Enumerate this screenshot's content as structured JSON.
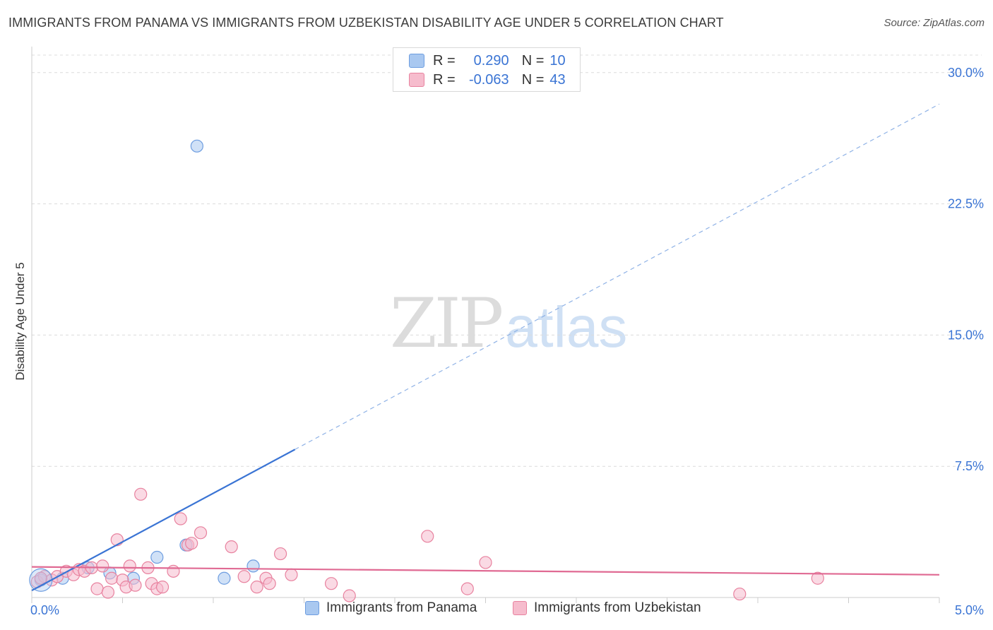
{
  "header": {
    "title": "IMMIGRANTS FROM PANAMA VS IMMIGRANTS FROM UZBEKISTAN DISABILITY AGE UNDER 5 CORRELATION CHART",
    "source": "Source: ZipAtlas.com"
  },
  "watermark": {
    "zip": "ZIP",
    "atlas": "atlas"
  },
  "stats": {
    "r_label": "R =",
    "n_label": "N =",
    "rows": [
      {
        "series": "Immigrants from Panama",
        "r": "0.290",
        "n": "10",
        "color": "#a9c8f0",
        "border": "#6d9de0"
      },
      {
        "series": "Immigrants from Uzbekistan",
        "r": "-0.063",
        "n": "43",
        "color": "#f6bccd",
        "border": "#e8829f"
      }
    ]
  },
  "chart_data": {
    "type": "scatter",
    "title": "IMMIGRANTS FROM PANAMA VS IMMIGRANTS FROM UZBEKISTAN DISABILITY AGE UNDER 5 CORRELATION CHART",
    "xlabel": "",
    "ylabel": "Disability Age Under 5",
    "xlim": [
      0,
      5
    ],
    "ylim": [
      0,
      31
    ],
    "x_unit": "%",
    "y_unit": "%",
    "x_tick_labels": [
      "0.0%",
      "5.0%"
    ],
    "y_ticks": [
      7.5,
      15.0,
      22.5,
      30.0
    ],
    "y_tick_labels": [
      "7.5%",
      "15.0%",
      "22.5%",
      "30.0%"
    ],
    "grid": true,
    "legend_position": "bottom",
    "series": [
      {
        "name": "Immigrants from Panama",
        "color": "#a9c8f0",
        "stroke": "#6d9de0",
        "trend_color": "#3a74d4",
        "trend": {
          "x0": 0,
          "y0": 0.4,
          "x1": 5,
          "y1": 28.2,
          "solid_until_x": 1.45
        },
        "points": [
          {
            "x": 0.05,
            "y": 1.0
          },
          {
            "x": 0.17,
            "y": 1.1
          },
          {
            "x": 0.31,
            "y": 1.7
          },
          {
            "x": 0.43,
            "y": 1.4
          },
          {
            "x": 0.56,
            "y": 1.1
          },
          {
            "x": 0.69,
            "y": 2.3
          },
          {
            "x": 0.85,
            "y": 3.0
          },
          {
            "x": 0.91,
            "y": 25.8
          },
          {
            "x": 1.06,
            "y": 1.1
          },
          {
            "x": 1.22,
            "y": 1.8
          }
        ]
      },
      {
        "name": "Immigrants from Uzbekistan",
        "color": "#f6bccd",
        "stroke": "#e8829f",
        "trend_color": "#e06a93",
        "trend": {
          "x0": 0,
          "y0": 1.75,
          "x1": 5,
          "y1": 1.3
        },
        "points": [
          {
            "x": 0.03,
            "y": 0.9
          },
          {
            "x": 0.07,
            "y": 1.2
          },
          {
            "x": 0.11,
            "y": 1.0
          },
          {
            "x": 0.14,
            "y": 1.2
          },
          {
            "x": 0.19,
            "y": 1.5
          },
          {
            "x": 0.23,
            "y": 1.3
          },
          {
            "x": 0.26,
            "y": 1.6
          },
          {
            "x": 0.29,
            "y": 1.5
          },
          {
            "x": 0.33,
            "y": 1.7
          },
          {
            "x": 0.36,
            "y": 0.5
          },
          {
            "x": 0.39,
            "y": 1.8
          },
          {
            "x": 0.42,
            "y": 0.3
          },
          {
            "x": 0.44,
            "y": 1.1
          },
          {
            "x": 0.47,
            "y": 3.3
          },
          {
            "x": 0.5,
            "y": 1.0
          },
          {
            "x": 0.52,
            "y": 0.6
          },
          {
            "x": 0.54,
            "y": 1.8
          },
          {
            "x": 0.57,
            "y": 0.7
          },
          {
            "x": 0.6,
            "y": 5.9
          },
          {
            "x": 0.64,
            "y": 1.7
          },
          {
            "x": 0.66,
            "y": 0.8
          },
          {
            "x": 0.69,
            "y": 0.5
          },
          {
            "x": 0.72,
            "y": 0.6
          },
          {
            "x": 0.78,
            "y": 1.5
          },
          {
            "x": 0.82,
            "y": 4.5
          },
          {
            "x": 0.86,
            "y": 3.0
          },
          {
            "x": 0.88,
            "y": 3.1
          },
          {
            "x": 0.93,
            "y": 3.7
          },
          {
            "x": 1.1,
            "y": 2.9
          },
          {
            "x": 1.17,
            "y": 1.2
          },
          {
            "x": 1.24,
            "y": 0.6
          },
          {
            "x": 1.29,
            "y": 1.1
          },
          {
            "x": 1.31,
            "y": 0.8
          },
          {
            "x": 1.37,
            "y": 2.5
          },
          {
            "x": 1.43,
            "y": 1.3
          },
          {
            "x": 1.65,
            "y": 0.8
          },
          {
            "x": 1.75,
            "y": 0.1
          },
          {
            "x": 2.18,
            "y": 3.5
          },
          {
            "x": 2.4,
            "y": 0.5
          },
          {
            "x": 2.5,
            "y": 2.0
          },
          {
            "x": 3.9,
            "y": 0.2
          },
          {
            "x": 4.33,
            "y": 1.1
          },
          {
            "x": 0.05,
            "y": 1.1
          }
        ]
      }
    ]
  }
}
